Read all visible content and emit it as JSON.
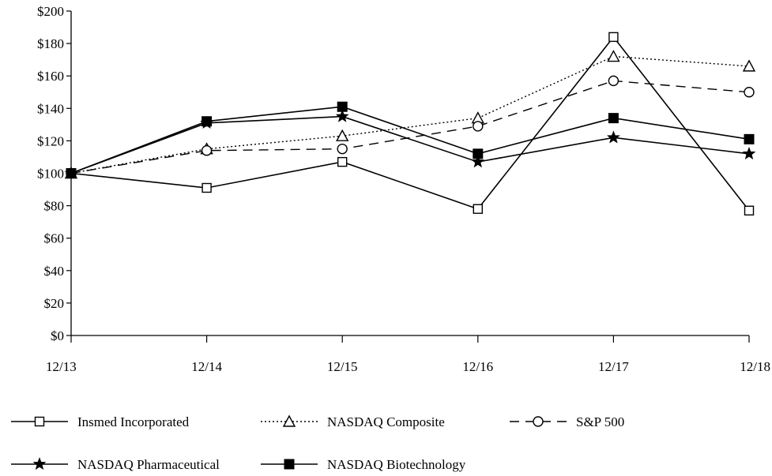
{
  "chart_data": {
    "type": "line",
    "title": "",
    "xlabel": "",
    "ylabel": "",
    "categories": [
      "12/13",
      "12/14",
      "12/15",
      "12/16",
      "12/17",
      "12/18"
    ],
    "y_ticks": [
      "$0",
      "$20",
      "$40",
      "$60",
      "$80",
      "$100",
      "$120",
      "$140",
      "$160",
      "$180",
      "$200"
    ],
    "ylim": [
      0,
      200
    ],
    "grid": false,
    "legend_position": "bottom",
    "series": [
      {
        "name": "Insmed Incorporated",
        "values": [
          100,
          91,
          107,
          78,
          184,
          77
        ],
        "marker": "open-square",
        "dash": "solid",
        "color": "#000000"
      },
      {
        "name": "NASDAQ Composite",
        "values": [
          100,
          115,
          123,
          134,
          172,
          166
        ],
        "marker": "open-triangle",
        "dash": "dotted",
        "color": "#000000"
      },
      {
        "name": "S&P 500",
        "values": [
          100,
          114,
          115,
          129,
          157,
          150
        ],
        "marker": "open-circle",
        "dash": "dashed",
        "color": "#000000"
      },
      {
        "name": "NASDAQ Pharmaceutical",
        "values": [
          100,
          131,
          135,
          107,
          122,
          112
        ],
        "marker": "star",
        "dash": "solid",
        "color": "#000000"
      },
      {
        "name": "NASDAQ Biotechnology",
        "values": [
          100,
          132,
          141,
          112,
          134,
          121
        ],
        "marker": "filled-square",
        "dash": "solid",
        "color": "#000000"
      }
    ]
  }
}
